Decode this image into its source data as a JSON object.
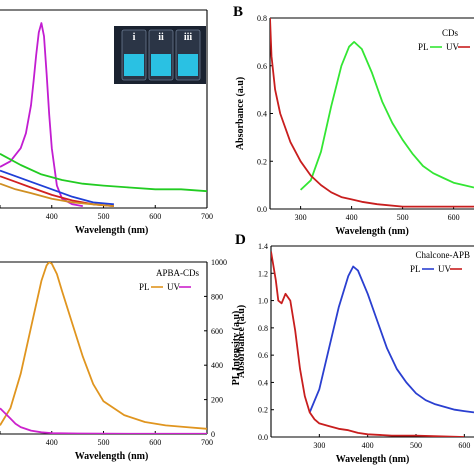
{
  "chart_data": [
    {
      "type": "line",
      "panel_label": "",
      "xlabel": "Wavelength (nm)",
      "ylabel": "",
      "xlim": [
        300,
        700
      ],
      "x_ticks": [
        "",
        "400",
        "500",
        "600",
        "700"
      ],
      "inset_photo": {
        "vial_labels": [
          "i",
          "ii",
          "iii"
        ],
        "colors": {
          "background": "#1a2230",
          "glow": "#2ad9ff"
        }
      },
      "series": [
        {
          "color": "#c21dd1",
          "x": [
            300,
            320,
            340,
            350,
            360,
            365,
            370,
            375,
            380,
            385,
            390,
            395,
            400,
            410,
            420,
            440,
            460
          ],
          "y": [
            0.22,
            0.25,
            0.32,
            0.4,
            0.55,
            0.68,
            0.82,
            0.94,
            0.99,
            0.92,
            0.72,
            0.5,
            0.32,
            0.12,
            0.05,
            0.02,
            0.01
          ]
        },
        {
          "color": "#22cc22",
          "x": [
            300,
            340,
            380,
            420,
            460,
            500,
            550,
            600,
            650,
            700
          ],
          "y": [
            0.29,
            0.23,
            0.18,
            0.15,
            0.13,
            0.12,
            0.11,
            0.1,
            0.1,
            0.09
          ]
        },
        {
          "color": "#1f3fd6",
          "x": [
            300,
            330,
            360,
            400,
            440,
            480,
            520
          ],
          "y": [
            0.2,
            0.17,
            0.14,
            0.1,
            0.06,
            0.03,
            0.02
          ]
        },
        {
          "color": "#d12020",
          "x": [
            300,
            330,
            360,
            400,
            440,
            480,
            520
          ],
          "y": [
            0.17,
            0.14,
            0.11,
            0.07,
            0.04,
            0.02,
            0.01
          ]
        },
        {
          "color": "#d08f22",
          "x": [
            300,
            330,
            360,
            400,
            440,
            480,
            520
          ],
          "y": [
            0.13,
            0.1,
            0.08,
            0.05,
            0.03,
            0.02,
            0.01
          ]
        }
      ]
    },
    {
      "type": "line",
      "panel_label": "B",
      "xlabel": "Wavelength (nm)",
      "ylabel": "Absorbance (a.u)",
      "xlim": [
        240,
        640
      ],
      "ylim": [
        0,
        0.8
      ],
      "x_ticks": [
        300,
        400,
        500,
        600
      ],
      "y_ticks": [
        0.0,
        0.2,
        0.4,
        0.6,
        0.8
      ],
      "legend_title": "CDs",
      "legend": [
        "PL",
        "UV"
      ],
      "series": [
        {
          "name": "PL",
          "color": "#33e633",
          "x": [
            300,
            320,
            340,
            360,
            380,
            395,
            405,
            420,
            440,
            460,
            480,
            500,
            520,
            540,
            560,
            580,
            600,
            620,
            640
          ],
          "y": [
            0.08,
            0.12,
            0.24,
            0.43,
            0.6,
            0.68,
            0.7,
            0.67,
            0.57,
            0.45,
            0.36,
            0.29,
            0.23,
            0.18,
            0.15,
            0.13,
            0.11,
            0.1,
            0.09
          ]
        },
        {
          "name": "UV",
          "color": "#c81e1e",
          "x": [
            240,
            243,
            250,
            260,
            280,
            300,
            320,
            340,
            360,
            380,
            400,
            420,
            450,
            500,
            550,
            600,
            640
          ],
          "y": [
            0.8,
            0.64,
            0.5,
            0.4,
            0.28,
            0.2,
            0.14,
            0.1,
            0.07,
            0.05,
            0.04,
            0.03,
            0.02,
            0.01,
            0.01,
            0.01,
            0.01
          ]
        }
      ]
    },
    {
      "type": "line",
      "panel_label": "",
      "xlabel": "Wavelength (nm)",
      "ylabel": "PL Intensity (a.u)",
      "xlim": [
        300,
        700
      ],
      "ylim": [
        0,
        1000
      ],
      "x_ticks": [
        "",
        "400",
        "500",
        "600",
        "700"
      ],
      "y_ticks": [
        0,
        200,
        400,
        600,
        800,
        1000
      ],
      "legend_title": "APBA-CDs",
      "legend": [
        "PL",
        "UV"
      ],
      "series": [
        {
          "name": "PL",
          "color": "#e0951f",
          "x": [
            300,
            320,
            340,
            360,
            380,
            390,
            395,
            400,
            410,
            420,
            440,
            460,
            480,
            500,
            540,
            580,
            620,
            660,
            700
          ],
          "y": [
            50,
            150,
            350,
            620,
            890,
            980,
            1000,
            990,
            930,
            830,
            640,
            450,
            290,
            190,
            110,
            70,
            50,
            40,
            30
          ]
        },
        {
          "name": "UV",
          "color": "#cc22cc",
          "x": [
            300,
            310,
            320,
            330,
            340,
            360,
            380,
            400,
            450,
            500,
            600,
            700
          ],
          "y": [
            150,
            120,
            90,
            60,
            40,
            20,
            10,
            5,
            3,
            2,
            1,
            1
          ]
        }
      ]
    },
    {
      "type": "line",
      "panel_label": "D",
      "xlabel": "Wavelength (nm)",
      "ylabel": "Absorbance (a.u)",
      "xlim": [
        200,
        620
      ],
      "ylim": [
        0,
        1.4
      ],
      "x_ticks": [
        300,
        400,
        500,
        600
      ],
      "y_ticks": [
        0.0,
        0.2,
        0.4,
        0.6,
        0.8,
        1.0,
        1.2,
        1.4
      ],
      "legend_title": "Chalcone-APB",
      "legend": [
        "PL",
        "UV"
      ],
      "series": [
        {
          "name": "PL",
          "color": "#2a3fd0",
          "x": [
            280,
            300,
            320,
            340,
            360,
            370,
            380,
            400,
            420,
            440,
            460,
            480,
            500,
            520,
            540,
            560,
            580,
            600,
            620
          ],
          "y": [
            0.18,
            0.35,
            0.65,
            0.95,
            1.18,
            1.25,
            1.22,
            1.05,
            0.85,
            0.65,
            0.5,
            0.4,
            0.32,
            0.27,
            0.24,
            0.22,
            0.2,
            0.19,
            0.18
          ]
        },
        {
          "name": "UV",
          "color": "#c81e1e",
          "x": [
            200,
            210,
            215,
            222,
            230,
            240,
            250,
            260,
            270,
            280,
            290,
            300,
            320,
            340,
            360,
            380,
            400,
            450,
            500,
            600
          ],
          "y": [
            1.36,
            1.15,
            1.0,
            0.98,
            1.05,
            1.0,
            0.78,
            0.5,
            0.3,
            0.18,
            0.13,
            0.1,
            0.08,
            0.06,
            0.05,
            0.03,
            0.02,
            0.01,
            0.01,
            0.0
          ]
        }
      ]
    }
  ]
}
